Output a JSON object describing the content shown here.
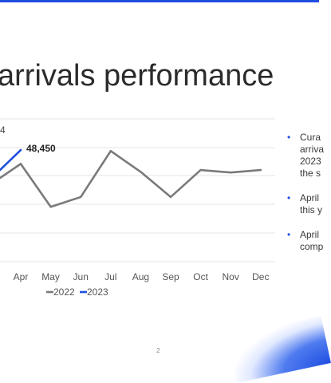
{
  "slide": {
    "title": "arrivals performance",
    "page_number": "2",
    "bullets": [
      {
        "lines": [
          "Cura",
          "arriva",
          "2023",
          "the s"
        ]
      },
      {
        "lines": [
          "April",
          "this y"
        ]
      },
      {
        "lines": [
          "April",
          "comp"
        ]
      }
    ]
  },
  "colors": {
    "accent": "#1f4fe0",
    "series_2022": "#7a7a7a",
    "series_2023": "#1f4fe0"
  },
  "chart_data": {
    "type": "line",
    "categories": [
      "Apr",
      "May",
      "Jun",
      "Jul",
      "Aug",
      "Sep",
      "Oct",
      "Nov",
      "Dec"
    ],
    "series": [
      {
        "name": "2022",
        "values": [
          46200,
          39200,
          40800,
          48300,
          44900,
          40800,
          45200,
          44800,
          45200
        ]
      },
      {
        "name": "2023",
        "values": [
          48450,
          null,
          null,
          null,
          null,
          null,
          null,
          null,
          null
        ]
      }
    ],
    "visible_partial_labels": [
      "4"
    ],
    "data_labels": [
      {
        "series": "2023",
        "category": "Apr",
        "text": "48,450"
      }
    ],
    "legend": {
      "position": "bottom",
      "entries": [
        "2022",
        "2023"
      ]
    },
    "grid": true
  }
}
